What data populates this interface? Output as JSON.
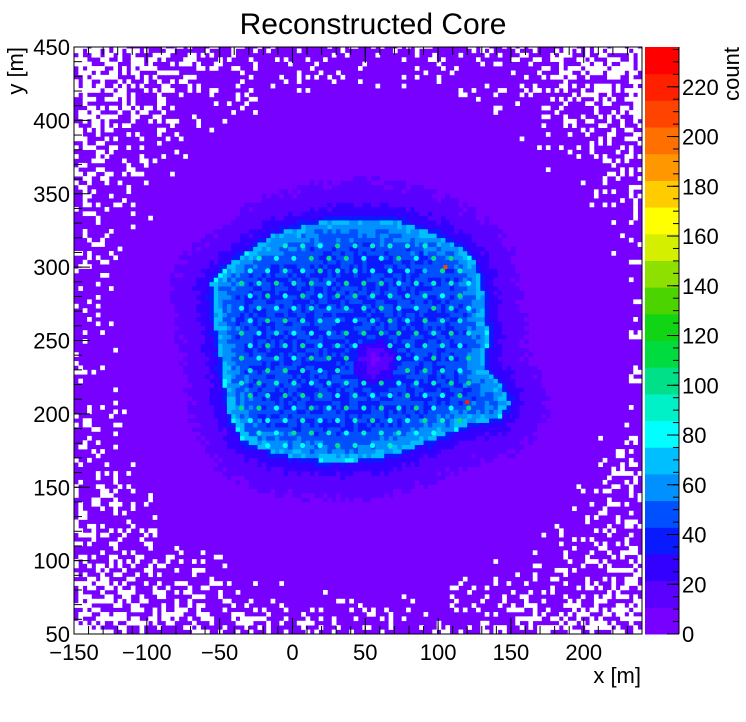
{
  "chart_data": {
    "type": "heatmap",
    "title": "Reconstructed Core",
    "xlabel": "x [m]",
    "ylabel": "y [m]",
    "zlabel": "count",
    "xlim": [
      -150,
      240
    ],
    "ylim": [
      50,
      450
    ],
    "zlim": [
      0,
      236
    ],
    "x_ticks": [
      -150,
      -100,
      -50,
      0,
      50,
      100,
      150,
      200
    ],
    "x_tick_labels": [
      "−150",
      "−100",
      "−50",
      "0",
      "50",
      "100",
      "150",
      "200"
    ],
    "y_ticks": [
      50,
      100,
      150,
      200,
      250,
      300,
      350,
      400,
      450
    ],
    "z_ticks": [
      0,
      20,
      40,
      60,
      80,
      100,
      120,
      140,
      160,
      180,
      200,
      220
    ],
    "background_level": 8,
    "hot_region": {
      "outline_xy": [
        [
          -57,
          287
        ],
        [
          -45,
          300
        ],
        [
          -30,
          310
        ],
        [
          -15,
          320
        ],
        [
          0,
          325
        ],
        [
          20,
          330
        ],
        [
          45,
          332
        ],
        [
          70,
          330
        ],
        [
          95,
          322
        ],
        [
          115,
          312
        ],
        [
          125,
          300
        ],
        [
          130,
          280
        ],
        [
          133,
          250
        ],
        [
          130,
          230
        ],
        [
          140,
          222
        ],
        [
          148,
          205
        ],
        [
          140,
          195
        ],
        [
          120,
          192
        ],
        [
          105,
          185
        ],
        [
          80,
          175
        ],
        [
          55,
          168
        ],
        [
          30,
          166
        ],
        [
          5,
          168
        ],
        [
          -15,
          172
        ],
        [
          -35,
          180
        ],
        [
          -45,
          200
        ],
        [
          -50,
          230
        ],
        [
          -55,
          262
        ]
      ],
      "edge_level": 72,
      "interior_level": 42
    },
    "hole_center": [
      55,
      235
    ],
    "detector_grid_bounds": {
      "x": [
        -35,
        125
      ],
      "y": [
        170,
        318
      ]
    },
    "detector_level": 90,
    "hot_spots": [
      {
        "x": 105,
        "y": 300,
        "level": 205
      },
      {
        "x": 120,
        "y": 208,
        "level": 215
      }
    ],
    "palette": [
      "#7700ff",
      "#5a00ff",
      "#3300ff",
      "#0a1aff",
      "#0050ff",
      "#0090ff",
      "#00bfff",
      "#00ffff",
      "#00f0c8",
      "#00e088",
      "#00dc40",
      "#10d414",
      "#4cd400",
      "#8ee000",
      "#d4f000",
      "#ffff00",
      "#ffcc00",
      "#ff9800",
      "#ff7000",
      "#ff4400",
      "#ff2000",
      "#ff0000"
    ]
  }
}
